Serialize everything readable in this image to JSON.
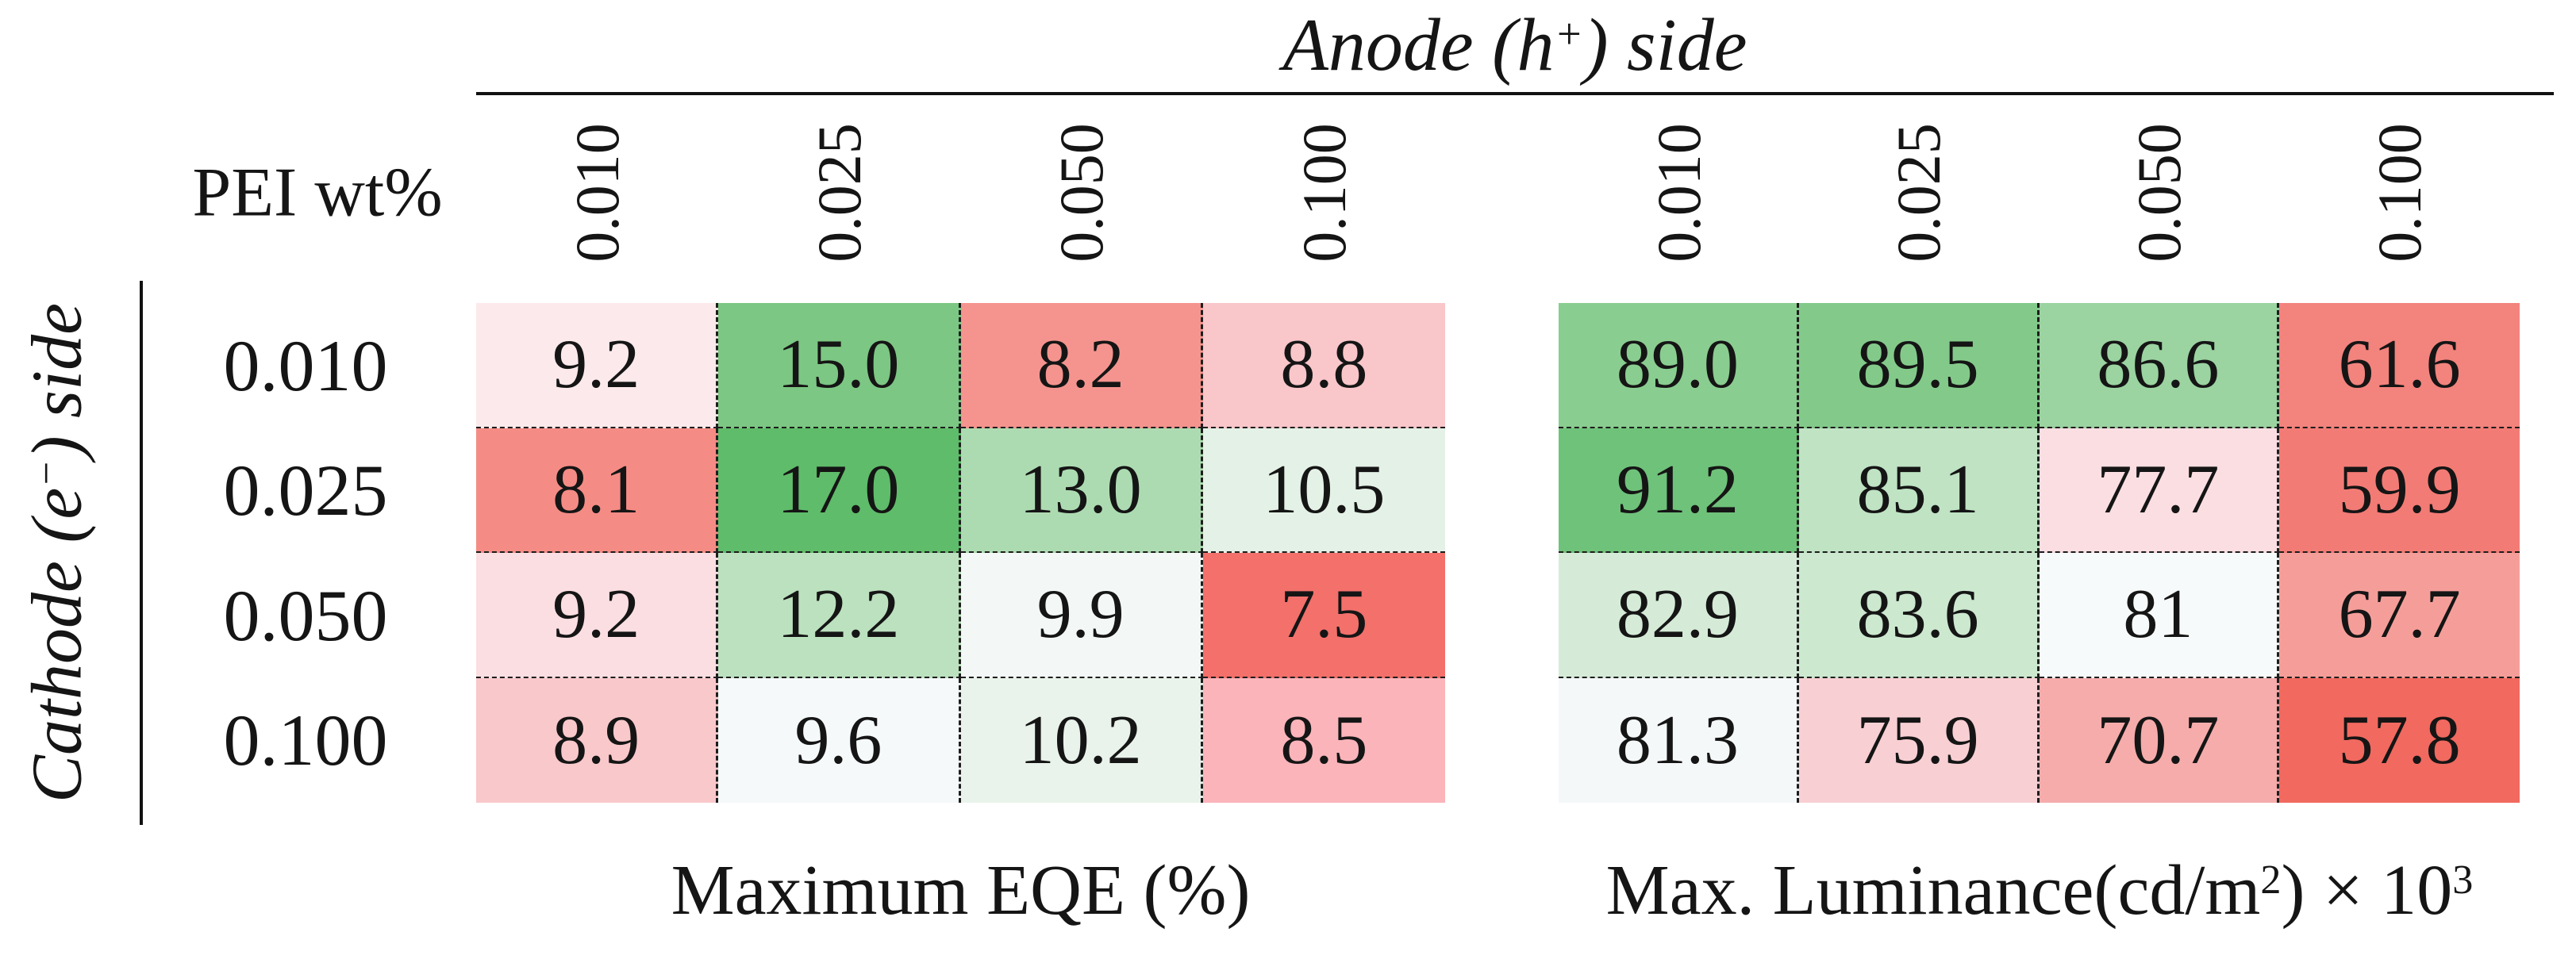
{
  "figure": {
    "background": "#ffffff",
    "rule_color": "#111111",
    "pei_label": "PEI wt%",
    "anode_axis_label": "Anode (h⁺) side",
    "cathode_axis_label": "Cathode (e⁻) side",
    "anode_title_parts": [
      {
        "text": "Anode (h"
      },
      {
        "text": "+",
        "sup": true
      },
      {
        "text": ") side"
      }
    ],
    "cathode_title_parts": [
      {
        "text": "Cathode (e"
      },
      {
        "text": "−",
        "sup": true
      },
      {
        "text": ") side"
      }
    ],
    "col_labels": [
      "0.010",
      "0.025",
      "0.050",
      "0.100"
    ],
    "row_labels": [
      "0.010",
      "0.025",
      "0.050",
      "0.100"
    ]
  },
  "captions": {
    "left": "Maximum EQE (%)",
    "right_full": "Max. Luminance(cd/m²) × 10³",
    "right_parts": [
      {
        "text": "Max. Luminance(cd/m"
      },
      {
        "text": "2",
        "sup": true
      },
      {
        "text": ") × 10"
      },
      {
        "text": "3",
        "sup": true
      }
    ]
  },
  "chart_data": [
    {
      "type": "heatmap",
      "title": "Maximum EQE (%)",
      "top_axis_label": "Anode (h⁺) side",
      "left_axis_label": "Cathode (e⁻) side",
      "unit_label": "PEI wt%",
      "x_labels": [
        "0.010",
        "0.025",
        "0.050",
        "0.100"
      ],
      "y_labels": [
        "0.010",
        "0.025",
        "0.050",
        "0.100"
      ],
      "values": [
        [
          9.2,
          15.0,
          8.2,
          8.8
        ],
        [
          8.1,
          17.0,
          13.0,
          10.5
        ],
        [
          9.2,
          12.2,
          9.9,
          7.5
        ],
        [
          8.9,
          9.6,
          10.2,
          8.5
        ]
      ],
      "display": [
        [
          "9.2",
          "15.0",
          "8.2",
          "8.8"
        ],
        [
          "8.1",
          "17.0",
          "13.0",
          "10.5"
        ],
        [
          "9.2",
          "12.2",
          "9.9",
          "7.5"
        ],
        [
          "8.9",
          "9.6",
          "10.2",
          "8.5"
        ]
      ],
      "cell_colors": [
        [
          "#fce9eb",
          "#7cc783",
          "#f5948e",
          "#f9c6c9"
        ],
        [
          "#f58b85",
          "#5fbc6a",
          "#addbb1",
          "#e4f1e6"
        ],
        [
          "#fbdee1",
          "#bce1bf",
          "#f3f8f6",
          "#f3706b"
        ],
        [
          "#f9c8cb",
          "#f5f9f9",
          "#e9f3eb",
          "#fab4ba"
        ]
      ],
      "colormap": "diverging red-white-green (low = red, high = green)",
      "grid": "dashed black cell separators"
    },
    {
      "type": "heatmap",
      "title": "Max. Luminance(cd/m²) × 10³",
      "top_axis_label": "Anode (h⁺) side",
      "left_axis_label": "Cathode (e⁻) side",
      "unit_label": "PEI wt%",
      "x_labels": [
        "0.010",
        "0.025",
        "0.050",
        "0.100"
      ],
      "y_labels": [
        "0.010",
        "0.025",
        "0.050",
        "0.100"
      ],
      "values": [
        [
          89.0,
          89.5,
          86.6,
          61.6
        ],
        [
          91.2,
          85.1,
          77.7,
          59.9
        ],
        [
          82.9,
          83.6,
          81,
          67.7
        ],
        [
          81.3,
          75.9,
          70.7,
          57.8
        ]
      ],
      "display": [
        [
          "89.0",
          "89.5",
          "86.6",
          "61.6"
        ],
        [
          "91.2",
          "85.1",
          "77.7",
          "59.9"
        ],
        [
          "82.9",
          "83.6",
          "81",
          "67.7"
        ],
        [
          "81.3",
          "75.9",
          "70.7",
          "57.8"
        ]
      ],
      "cell_colors": [
        [
          "#8acd90",
          "#83ca8a",
          "#9bd3a1",
          "#f3837d"
        ],
        [
          "#6fc27a",
          "#bfe3c3",
          "#fbdee2",
          "#f37b75"
        ],
        [
          "#d5ebd7",
          "#cce8cf",
          "#f7fafa",
          "#f59e99"
        ],
        [
          "#f5f8f9",
          "#f8cfd3",
          "#f5acab",
          "#f1695f"
        ]
      ],
      "colormap": "diverging red-white-green (low = red, high = green)",
      "grid": "dashed black cell separators"
    }
  ]
}
